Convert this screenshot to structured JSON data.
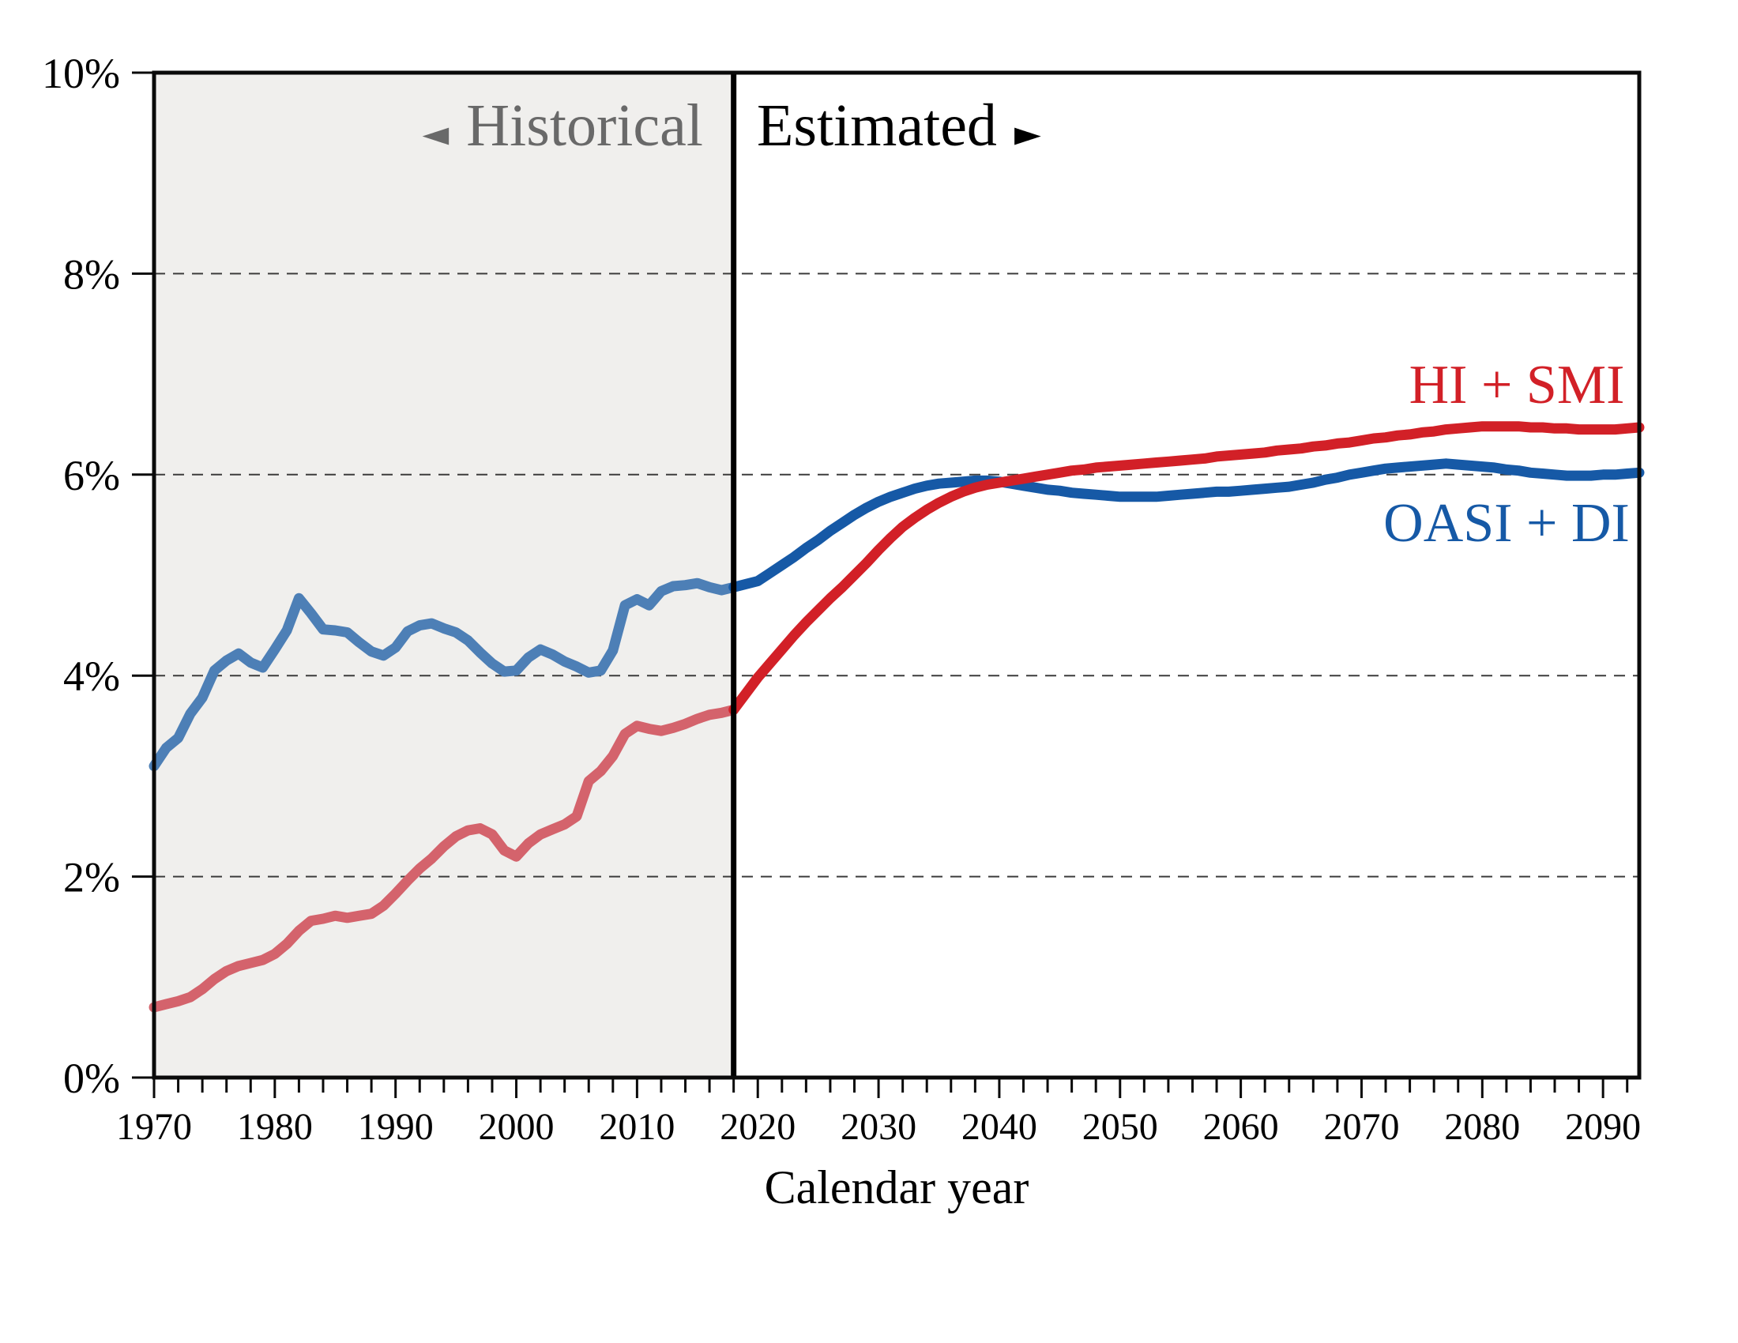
{
  "labels": {
    "historical": "Historical",
    "historical_arrow": "◄",
    "estimated": "Estimated",
    "estimated_arrow": "►"
  },
  "chart_data": {
    "type": "line",
    "title": "",
    "xlabel": "Calendar year",
    "ylabel": "",
    "xlim": [
      1970,
      2093
    ],
    "ylim": [
      0,
      10
    ],
    "historical_end": 2018,
    "grid": "dashed horizontal at even percents",
    "legend_position": "inline labels near right end of each line",
    "minor_tick_step": 2,
    "x_ticks": [
      1970,
      1980,
      1990,
      2000,
      2010,
      2020,
      2030,
      2040,
      2050,
      2060,
      2070,
      2080,
      2090
    ],
    "y_ticks": [
      {
        "value": 0,
        "label": "0%"
      },
      {
        "value": 2,
        "label": "2%"
      },
      {
        "value": 4,
        "label": "4%"
      },
      {
        "value": 6,
        "label": "6%"
      },
      {
        "value": 8,
        "label": "8%"
      },
      {
        "value": 10,
        "label": "10%"
      }
    ],
    "colors": {
      "historical_bg": "#f0efed",
      "gridline": "#3c3c3c",
      "frame": "#0a0a0a",
      "divider": "#000000",
      "historical_text": "#696969",
      "estimated_text": "#000000"
    },
    "series": [
      {
        "id": "oasi-di",
        "name": "OASI + DI",
        "color": "#1659a6",
        "historical_color": "#4d7fb6",
        "points": [
          [
            1970,
            3.1
          ],
          [
            1971,
            3.28
          ],
          [
            1972,
            3.38
          ],
          [
            1973,
            3.62
          ],
          [
            1974,
            3.78
          ],
          [
            1975,
            4.05
          ],
          [
            1976,
            4.15
          ],
          [
            1977,
            4.22
          ],
          [
            1978,
            4.13
          ],
          [
            1979,
            4.08
          ],
          [
            1980,
            4.26
          ],
          [
            1981,
            4.45
          ],
          [
            1982,
            4.77
          ],
          [
            1983,
            4.62
          ],
          [
            1984,
            4.46
          ],
          [
            1985,
            4.45
          ],
          [
            1986,
            4.43
          ],
          [
            1987,
            4.33
          ],
          [
            1988,
            4.24
          ],
          [
            1989,
            4.2
          ],
          [
            1990,
            4.28
          ],
          [
            1991,
            4.44
          ],
          [
            1992,
            4.5
          ],
          [
            1993,
            4.52
          ],
          [
            1994,
            4.47
          ],
          [
            1995,
            4.43
          ],
          [
            1996,
            4.35
          ],
          [
            1997,
            4.23
          ],
          [
            1998,
            4.12
          ],
          [
            1999,
            4.04
          ],
          [
            2000,
            4.05
          ],
          [
            2001,
            4.18
          ],
          [
            2002,
            4.26
          ],
          [
            2003,
            4.21
          ],
          [
            2004,
            4.14
          ],
          [
            2005,
            4.09
          ],
          [
            2006,
            4.03
          ],
          [
            2007,
            4.05
          ],
          [
            2008,
            4.25
          ],
          [
            2009,
            4.7
          ],
          [
            2010,
            4.76
          ],
          [
            2011,
            4.7
          ],
          [
            2012,
            4.84
          ],
          [
            2013,
            4.89
          ],
          [
            2014,
            4.9
          ],
          [
            2015,
            4.92
          ],
          [
            2016,
            4.88
          ],
          [
            2017,
            4.85
          ],
          [
            2018,
            4.88
          ],
          [
            2019,
            4.91
          ],
          [
            2020,
            4.94
          ],
          [
            2021,
            5.02
          ],
          [
            2022,
            5.1
          ],
          [
            2023,
            5.18
          ],
          [
            2024,
            5.27
          ],
          [
            2025,
            5.35
          ],
          [
            2026,
            5.44
          ],
          [
            2027,
            5.52
          ],
          [
            2028,
            5.6
          ],
          [
            2029,
            5.67
          ],
          [
            2030,
            5.73
          ],
          [
            2031,
            5.78
          ],
          [
            2032,
            5.82
          ],
          [
            2033,
            5.86
          ],
          [
            2034,
            5.89
          ],
          [
            2035,
            5.91
          ],
          [
            2036,
            5.92
          ],
          [
            2037,
            5.93
          ],
          [
            2038,
            5.94
          ],
          [
            2039,
            5.94
          ],
          [
            2040,
            5.93
          ],
          [
            2041,
            5.91
          ],
          [
            2042,
            5.89
          ],
          [
            2043,
            5.87
          ],
          [
            2044,
            5.85
          ],
          [
            2045,
            5.84
          ],
          [
            2046,
            5.82
          ],
          [
            2047,
            5.81
          ],
          [
            2048,
            5.8
          ],
          [
            2049,
            5.79
          ],
          [
            2050,
            5.78
          ],
          [
            2051,
            5.78
          ],
          [
            2052,
            5.78
          ],
          [
            2053,
            5.78
          ],
          [
            2054,
            5.79
          ],
          [
            2055,
            5.8
          ],
          [
            2056,
            5.81
          ],
          [
            2057,
            5.82
          ],
          [
            2058,
            5.83
          ],
          [
            2059,
            5.83
          ],
          [
            2060,
            5.84
          ],
          [
            2061,
            5.85
          ],
          [
            2062,
            5.86
          ],
          [
            2063,
            5.87
          ],
          [
            2064,
            5.88
          ],
          [
            2065,
            5.9
          ],
          [
            2066,
            5.92
          ],
          [
            2067,
            5.95
          ],
          [
            2068,
            5.97
          ],
          [
            2069,
            6.0
          ],
          [
            2070,
            6.02
          ],
          [
            2071,
            6.04
          ],
          [
            2072,
            6.06
          ],
          [
            2073,
            6.07
          ],
          [
            2074,
            6.08
          ],
          [
            2075,
            6.09
          ],
          [
            2076,
            6.1
          ],
          [
            2077,
            6.11
          ],
          [
            2078,
            6.1
          ],
          [
            2079,
            6.09
          ],
          [
            2080,
            6.08
          ],
          [
            2081,
            6.07
          ],
          [
            2082,
            6.05
          ],
          [
            2083,
            6.04
          ],
          [
            2084,
            6.02
          ],
          [
            2085,
            6.01
          ],
          [
            2086,
            6.0
          ],
          [
            2087,
            5.99
          ],
          [
            2088,
            5.99
          ],
          [
            2089,
            5.99
          ],
          [
            2090,
            6.0
          ],
          [
            2091,
            6.0
          ],
          [
            2092,
            6.01
          ],
          [
            2093,
            6.02
          ]
        ]
      },
      {
        "id": "hi-smi",
        "name": "HI + SMI",
        "color": "#d22027",
        "historical_color": "#d4636c",
        "points": [
          [
            1970,
            0.7
          ],
          [
            1971,
            0.73
          ],
          [
            1972,
            0.76
          ],
          [
            1973,
            0.8
          ],
          [
            1974,
            0.88
          ],
          [
            1975,
            0.98
          ],
          [
            1976,
            1.06
          ],
          [
            1977,
            1.11
          ],
          [
            1978,
            1.14
          ],
          [
            1979,
            1.17
          ],
          [
            1980,
            1.23
          ],
          [
            1981,
            1.33
          ],
          [
            1982,
            1.46
          ],
          [
            1983,
            1.56
          ],
          [
            1984,
            1.58
          ],
          [
            1985,
            1.61
          ],
          [
            1986,
            1.59
          ],
          [
            1987,
            1.61
          ],
          [
            1988,
            1.63
          ],
          [
            1989,
            1.71
          ],
          [
            1990,
            1.83
          ],
          [
            1991,
            1.96
          ],
          [
            1992,
            2.08
          ],
          [
            1993,
            2.18
          ],
          [
            1994,
            2.3
          ],
          [
            1995,
            2.4
          ],
          [
            1996,
            2.46
          ],
          [
            1997,
            2.48
          ],
          [
            1998,
            2.42
          ],
          [
            1999,
            2.26
          ],
          [
            2000,
            2.2
          ],
          [
            2001,
            2.33
          ],
          [
            2002,
            2.42
          ],
          [
            2003,
            2.47
          ],
          [
            2004,
            2.52
          ],
          [
            2005,
            2.6
          ],
          [
            2006,
            2.95
          ],
          [
            2007,
            3.05
          ],
          [
            2008,
            3.2
          ],
          [
            2009,
            3.42
          ],
          [
            2010,
            3.5
          ],
          [
            2011,
            3.47
          ],
          [
            2012,
            3.45
          ],
          [
            2013,
            3.48
          ],
          [
            2014,
            3.52
          ],
          [
            2015,
            3.57
          ],
          [
            2016,
            3.61
          ],
          [
            2017,
            3.63
          ],
          [
            2018,
            3.66
          ],
          [
            2019,
            3.82
          ],
          [
            2020,
            3.98
          ],
          [
            2021,
            4.12
          ],
          [
            2022,
            4.26
          ],
          [
            2023,
            4.4
          ],
          [
            2024,
            4.53
          ],
          [
            2025,
            4.65
          ],
          [
            2026,
            4.77
          ],
          [
            2027,
            4.88
          ],
          [
            2028,
            5.0
          ],
          [
            2029,
            5.12
          ],
          [
            2030,
            5.25
          ],
          [
            2031,
            5.37
          ],
          [
            2032,
            5.48
          ],
          [
            2033,
            5.57
          ],
          [
            2034,
            5.65
          ],
          [
            2035,
            5.72
          ],
          [
            2036,
            5.78
          ],
          [
            2037,
            5.83
          ],
          [
            2038,
            5.87
          ],
          [
            2039,
            5.9
          ],
          [
            2040,
            5.92
          ],
          [
            2041,
            5.94
          ],
          [
            2042,
            5.96
          ],
          [
            2043,
            5.98
          ],
          [
            2044,
            6.0
          ],
          [
            2045,
            6.02
          ],
          [
            2046,
            6.04
          ],
          [
            2047,
            6.05
          ],
          [
            2048,
            6.07
          ],
          [
            2049,
            6.08
          ],
          [
            2050,
            6.09
          ],
          [
            2051,
            6.1
          ],
          [
            2052,
            6.11
          ],
          [
            2053,
            6.12
          ],
          [
            2054,
            6.13
          ],
          [
            2055,
            6.14
          ],
          [
            2056,
            6.15
          ],
          [
            2057,
            6.16
          ],
          [
            2058,
            6.18
          ],
          [
            2059,
            6.19
          ],
          [
            2060,
            6.2
          ],
          [
            2061,
            6.21
          ],
          [
            2062,
            6.22
          ],
          [
            2063,
            6.24
          ],
          [
            2064,
            6.25
          ],
          [
            2065,
            6.26
          ],
          [
            2066,
            6.28
          ],
          [
            2067,
            6.29
          ],
          [
            2068,
            6.31
          ],
          [
            2069,
            6.32
          ],
          [
            2070,
            6.34
          ],
          [
            2071,
            6.36
          ],
          [
            2072,
            6.37
          ],
          [
            2073,
            6.39
          ],
          [
            2074,
            6.4
          ],
          [
            2075,
            6.42
          ],
          [
            2076,
            6.43
          ],
          [
            2077,
            6.45
          ],
          [
            2078,
            6.46
          ],
          [
            2079,
            6.47
          ],
          [
            2080,
            6.48
          ],
          [
            2081,
            6.48
          ],
          [
            2082,
            6.48
          ],
          [
            2083,
            6.48
          ],
          [
            2084,
            6.47
          ],
          [
            2085,
            6.47
          ],
          [
            2086,
            6.46
          ],
          [
            2087,
            6.46
          ],
          [
            2088,
            6.45
          ],
          [
            2089,
            6.45
          ],
          [
            2090,
            6.45
          ],
          [
            2091,
            6.45
          ],
          [
            2092,
            6.46
          ],
          [
            2093,
            6.47
          ]
        ]
      }
    ]
  }
}
